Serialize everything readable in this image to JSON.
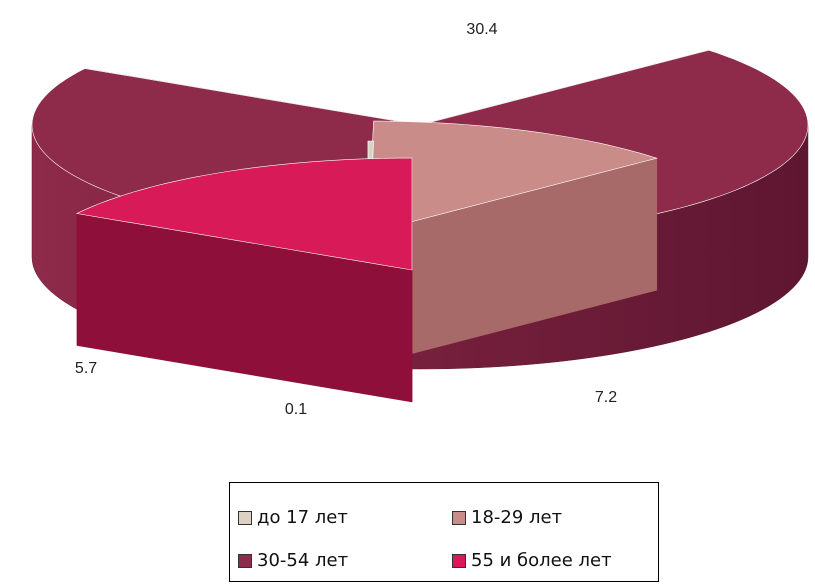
{
  "chart_data": {
    "type": "pie",
    "style": "3d-exploded",
    "categories": [
      "до 17 лет",
      "18-29 лет",
      "30-54 лет",
      "55 и более лет"
    ],
    "values": [
      0.1,
      5.7,
      30.4,
      7.2
    ],
    "value_labels": [
      "0.1",
      "5.7",
      "30.4",
      "7.2"
    ],
    "colors": [
      "#ddd0c4",
      "#c98c88",
      "#8e2a4a",
      "#d81a58"
    ],
    "side_colors": [
      "#b4a89c",
      "#a86a68",
      "#5e1630",
      "#8e0f3a"
    ],
    "legend_position": "bottom",
    "exploded": [
      "до 17 лет",
      "18-29 лет",
      "55 и более лет"
    ],
    "title": ""
  },
  "legend": {
    "items": [
      {
        "label": "до 17 лет",
        "color": "#ddd0c4"
      },
      {
        "label": "18-29 лет",
        "color": "#c98c88"
      },
      {
        "label": "30-54 лет",
        "color": "#8e2a4a"
      },
      {
        "label": "55 и более лет",
        "color": "#d81a58"
      }
    ]
  }
}
